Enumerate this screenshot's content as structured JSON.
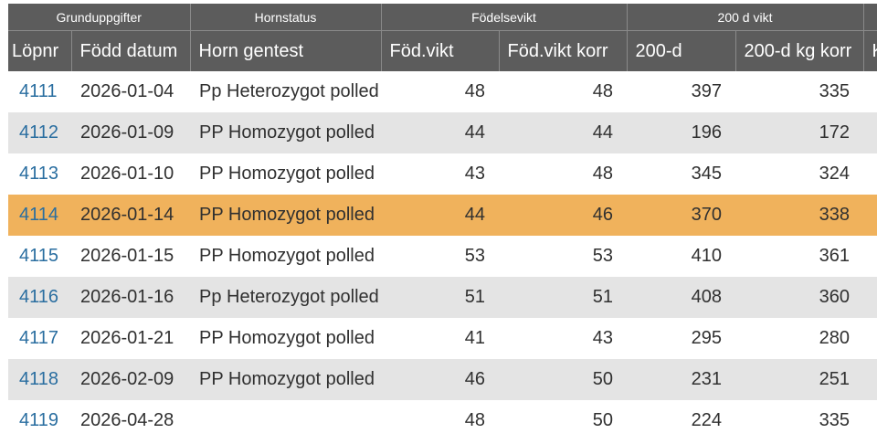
{
  "group_headers": [
    "Grunduppgifter",
    "Hornstatus",
    "Födelsevikt",
    "200 d vikt"
  ],
  "columns": [
    "Löpnr",
    "Född datum",
    "Horn gentest",
    "Föd.vikt",
    "Föd.vikt korr",
    "200-d",
    "200-d kg korr",
    "K"
  ],
  "rows": [
    {
      "lopnr": "4111",
      "fodd": "2026-01-04",
      "horn": "Pp Heterozygot polled",
      "fodvikt": "48",
      "fodkorr": "48",
      "d200": "397",
      "d200korr": "335"
    },
    {
      "lopnr": "4112",
      "fodd": "2026-01-09",
      "horn": "PP Homozygot polled",
      "fodvikt": "44",
      "fodkorr": "44",
      "d200": "196",
      "d200korr": "172"
    },
    {
      "lopnr": "4113",
      "fodd": "2026-01-10",
      "horn": "PP Homozygot polled",
      "fodvikt": "43",
      "fodkorr": "48",
      "d200": "345",
      "d200korr": "324"
    },
    {
      "lopnr": "4114",
      "fodd": "2026-01-14",
      "horn": "PP Homozygot polled",
      "fodvikt": "44",
      "fodkorr": "46",
      "d200": "370",
      "d200korr": "338"
    },
    {
      "lopnr": "4115",
      "fodd": "2026-01-15",
      "horn": "PP Homozygot polled",
      "fodvikt": "53",
      "fodkorr": "53",
      "d200": "410",
      "d200korr": "361"
    },
    {
      "lopnr": "4116",
      "fodd": "2026-01-16",
      "horn": "Pp Heterozygot polled",
      "fodvikt": "51",
      "fodkorr": "51",
      "d200": "408",
      "d200korr": "360"
    },
    {
      "lopnr": "4117",
      "fodd": "2026-01-21",
      "horn": "PP Homozygot polled",
      "fodvikt": "41",
      "fodkorr": "43",
      "d200": "295",
      "d200korr": "280"
    },
    {
      "lopnr": "4118",
      "fodd": "2026-02-09",
      "horn": "PP Homozygot polled",
      "fodvikt": "46",
      "fodkorr": "50",
      "d200": "231",
      "d200korr": "251"
    },
    {
      "lopnr": "4119",
      "fodd": "2026-04-28",
      "horn": "",
      "fodvikt": "48",
      "fodkorr": "50",
      "d200": "224",
      "d200korr": "335"
    }
  ],
  "colors": {
    "header_bg": "#5c5c5c",
    "highlight_row": "#f0b25c",
    "stripe_row": "#e4e4e4",
    "link": "#2a6ea0"
  }
}
